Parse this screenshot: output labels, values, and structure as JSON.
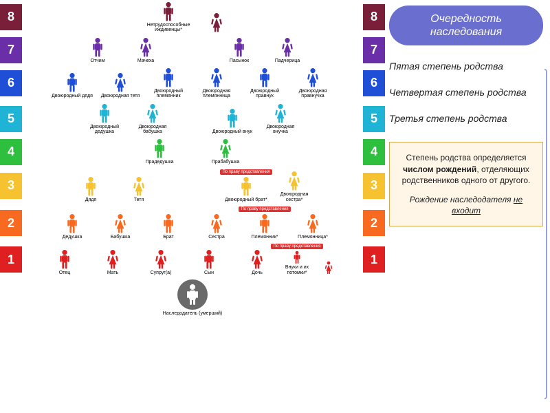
{
  "title": "Очередность наследования",
  "degrees": [
    "Пятая степень родства",
    "Четвертая степень родства",
    "Третья степень родства"
  ],
  "info": {
    "p1_a": "Степень родства определяется ",
    "p1_b": "числом рождений",
    "p1_c": ", отделяющих родственников одного от другого.",
    "p2_a": "Рождение наследодателя ",
    "p2_b": "не входит"
  },
  "rep_badge": "По праву представления",
  "heir_label": "Наследодатель (умерший)",
  "icon": {
    "w": 18,
    "h": 30
  },
  "rows": [
    {
      "num": "8",
      "color": "#7a1f3a",
      "people": [
        {
          "g": "m",
          "label": "Нетрудоспособные иждивенцы*"
        },
        {
          "g": "f",
          "label": ""
        }
      ],
      "merge_label": true
    },
    {
      "num": "7",
      "color": "#6a2ea8",
      "people": [
        {
          "g": "m",
          "label": "Отчим"
        },
        {
          "g": "f",
          "label": "Мачеха"
        },
        {
          "spacer": 60
        },
        {
          "g": "m",
          "label": "Пасынок"
        },
        {
          "g": "f",
          "label": "Падчерица"
        }
      ]
    },
    {
      "num": "6",
      "color": "#1f4fd6",
      "people": [
        {
          "g": "m",
          "label": "Двоюродный дядя"
        },
        {
          "g": "f",
          "label": "Двоюродная тетя"
        },
        {
          "g": "m",
          "label": "Двоюродный племянник"
        },
        {
          "g": "f",
          "label": "Двоюродная племянница"
        },
        {
          "g": "m",
          "label": "Двоюродный правнук"
        },
        {
          "g": "f",
          "label": "Двоюродная правнучка"
        }
      ]
    },
    {
      "num": "5",
      "color": "#1fb4d6",
      "people": [
        {
          "g": "m",
          "label": "Двоюродный дедушка"
        },
        {
          "g": "f",
          "label": "Двоюродная бабушка"
        },
        {
          "spacer": 40
        },
        {
          "g": "m",
          "label": "Двоюродный внук"
        },
        {
          "g": "f",
          "label": "Двоюродная внучка"
        }
      ]
    },
    {
      "num": "4",
      "color": "#2fbf3f",
      "people": [
        {
          "g": "m",
          "label": "Прадедушка"
        },
        {
          "spacer": 20
        },
        {
          "g": "f",
          "label": "Прабабушка"
        }
      ]
    },
    {
      "num": "3",
      "color": "#f7c22f",
      "people": [
        {
          "g": "m",
          "label": "Дядя"
        },
        {
          "g": "f",
          "label": "Тетя"
        },
        {
          "spacer": 80
        },
        {
          "g": "m",
          "label": "Двоюродный брат*",
          "rep": true
        },
        {
          "g": "f",
          "label": "Двоюродная сестра*"
        }
      ]
    },
    {
      "num": "2",
      "color": "#f76a1f",
      "people": [
        {
          "g": "m",
          "label": "Дедушка"
        },
        {
          "g": "f",
          "label": "Бабушка"
        },
        {
          "g": "m",
          "label": "Брат"
        },
        {
          "g": "f",
          "label": "Сестра"
        },
        {
          "g": "m",
          "label": "Племянник*",
          "rep": true
        },
        {
          "g": "f",
          "label": "Племянница*"
        }
      ]
    },
    {
      "num": "1",
      "color": "#e02020",
      "people": [
        {
          "g": "m",
          "label": "Отец"
        },
        {
          "g": "f",
          "label": "Мать"
        },
        {
          "g": "f",
          "label": "Супруг(а)"
        },
        {
          "g": "m",
          "label": "Сын"
        },
        {
          "g": "f",
          "label": "Дочь"
        },
        {
          "g": "m",
          "label": "Внуки и их потомки*",
          "rep": true,
          "small": true
        },
        {
          "g": "f",
          "label": "",
          "small": true
        }
      ]
    }
  ],
  "heir_color": "#6a6a6a"
}
